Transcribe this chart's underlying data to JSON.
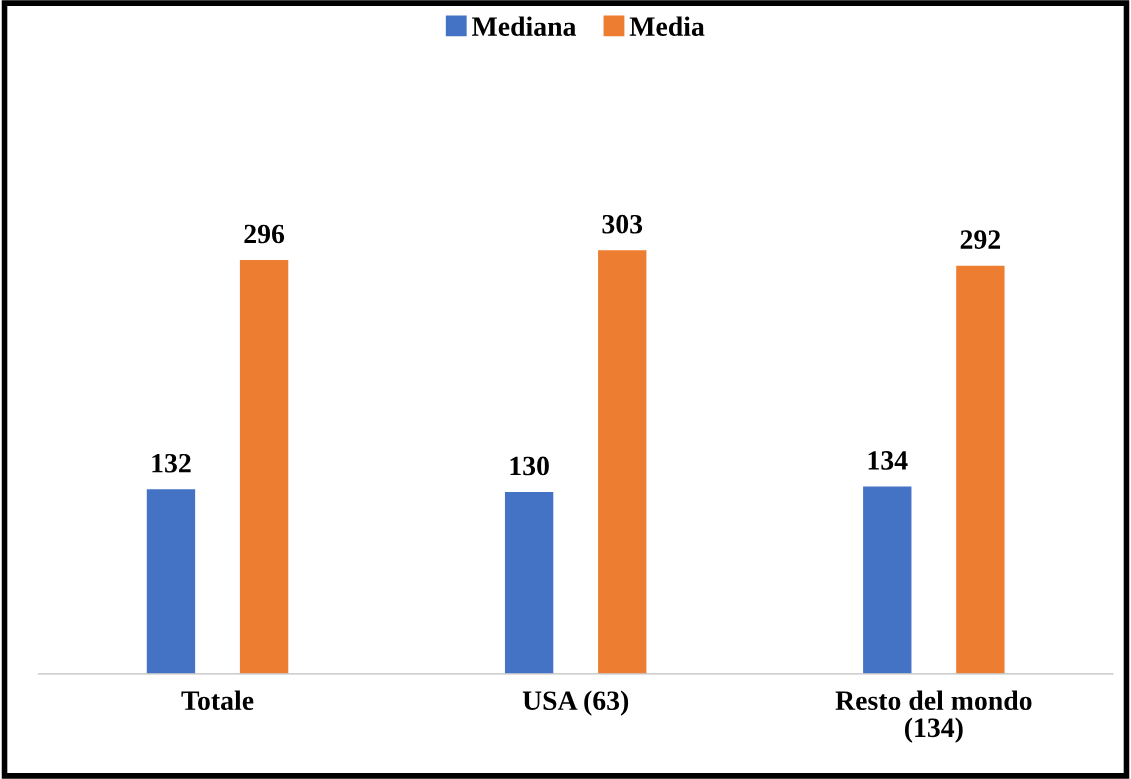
{
  "chart_data": {
    "type": "bar",
    "categories": [
      "Totale",
      "USA (63)",
      "Resto del mondo\n(134)"
    ],
    "series": [
      {
        "name": "Mediana",
        "color": "#4472c4",
        "values": [
          132,
          130,
          134
        ]
      },
      {
        "name": "Media",
        "color": "#ed7d31",
        "values": [
          296,
          303,
          292
        ]
      }
    ],
    "data_labels": true,
    "legend": "top",
    "grid": false
  }
}
